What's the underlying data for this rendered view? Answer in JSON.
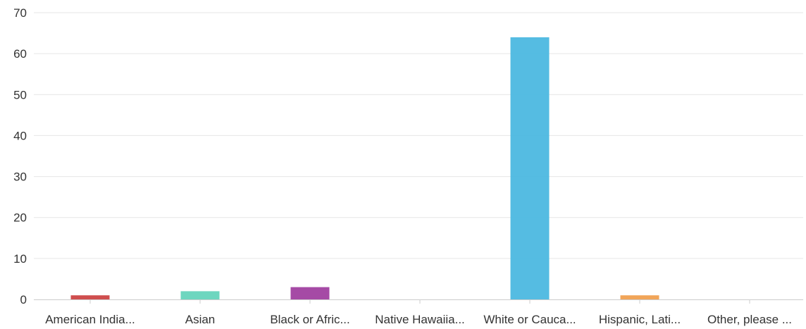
{
  "chart_data": {
    "type": "bar",
    "title": "",
    "xlabel": "",
    "ylabel": "",
    "categories": [
      "American India...",
      "Asian",
      "Black or Afric...",
      "Native Hawaiia...",
      "White or Cauca...",
      "Hispanic, Lati...",
      "Other, please ..."
    ],
    "values": [
      1,
      2,
      3,
      0,
      64,
      1,
      0
    ],
    "colors": [
      "#cc4444",
      "#66d4bc",
      "#a040a0",
      "#8ab4e0",
      "#4cb8e0",
      "#f0a050",
      "#999999"
    ],
    "ylim": [
      0,
      70
    ],
    "yticks": [
      0,
      10,
      20,
      30,
      40,
      50,
      60,
      70
    ],
    "grid": true,
    "legend": "none"
  }
}
